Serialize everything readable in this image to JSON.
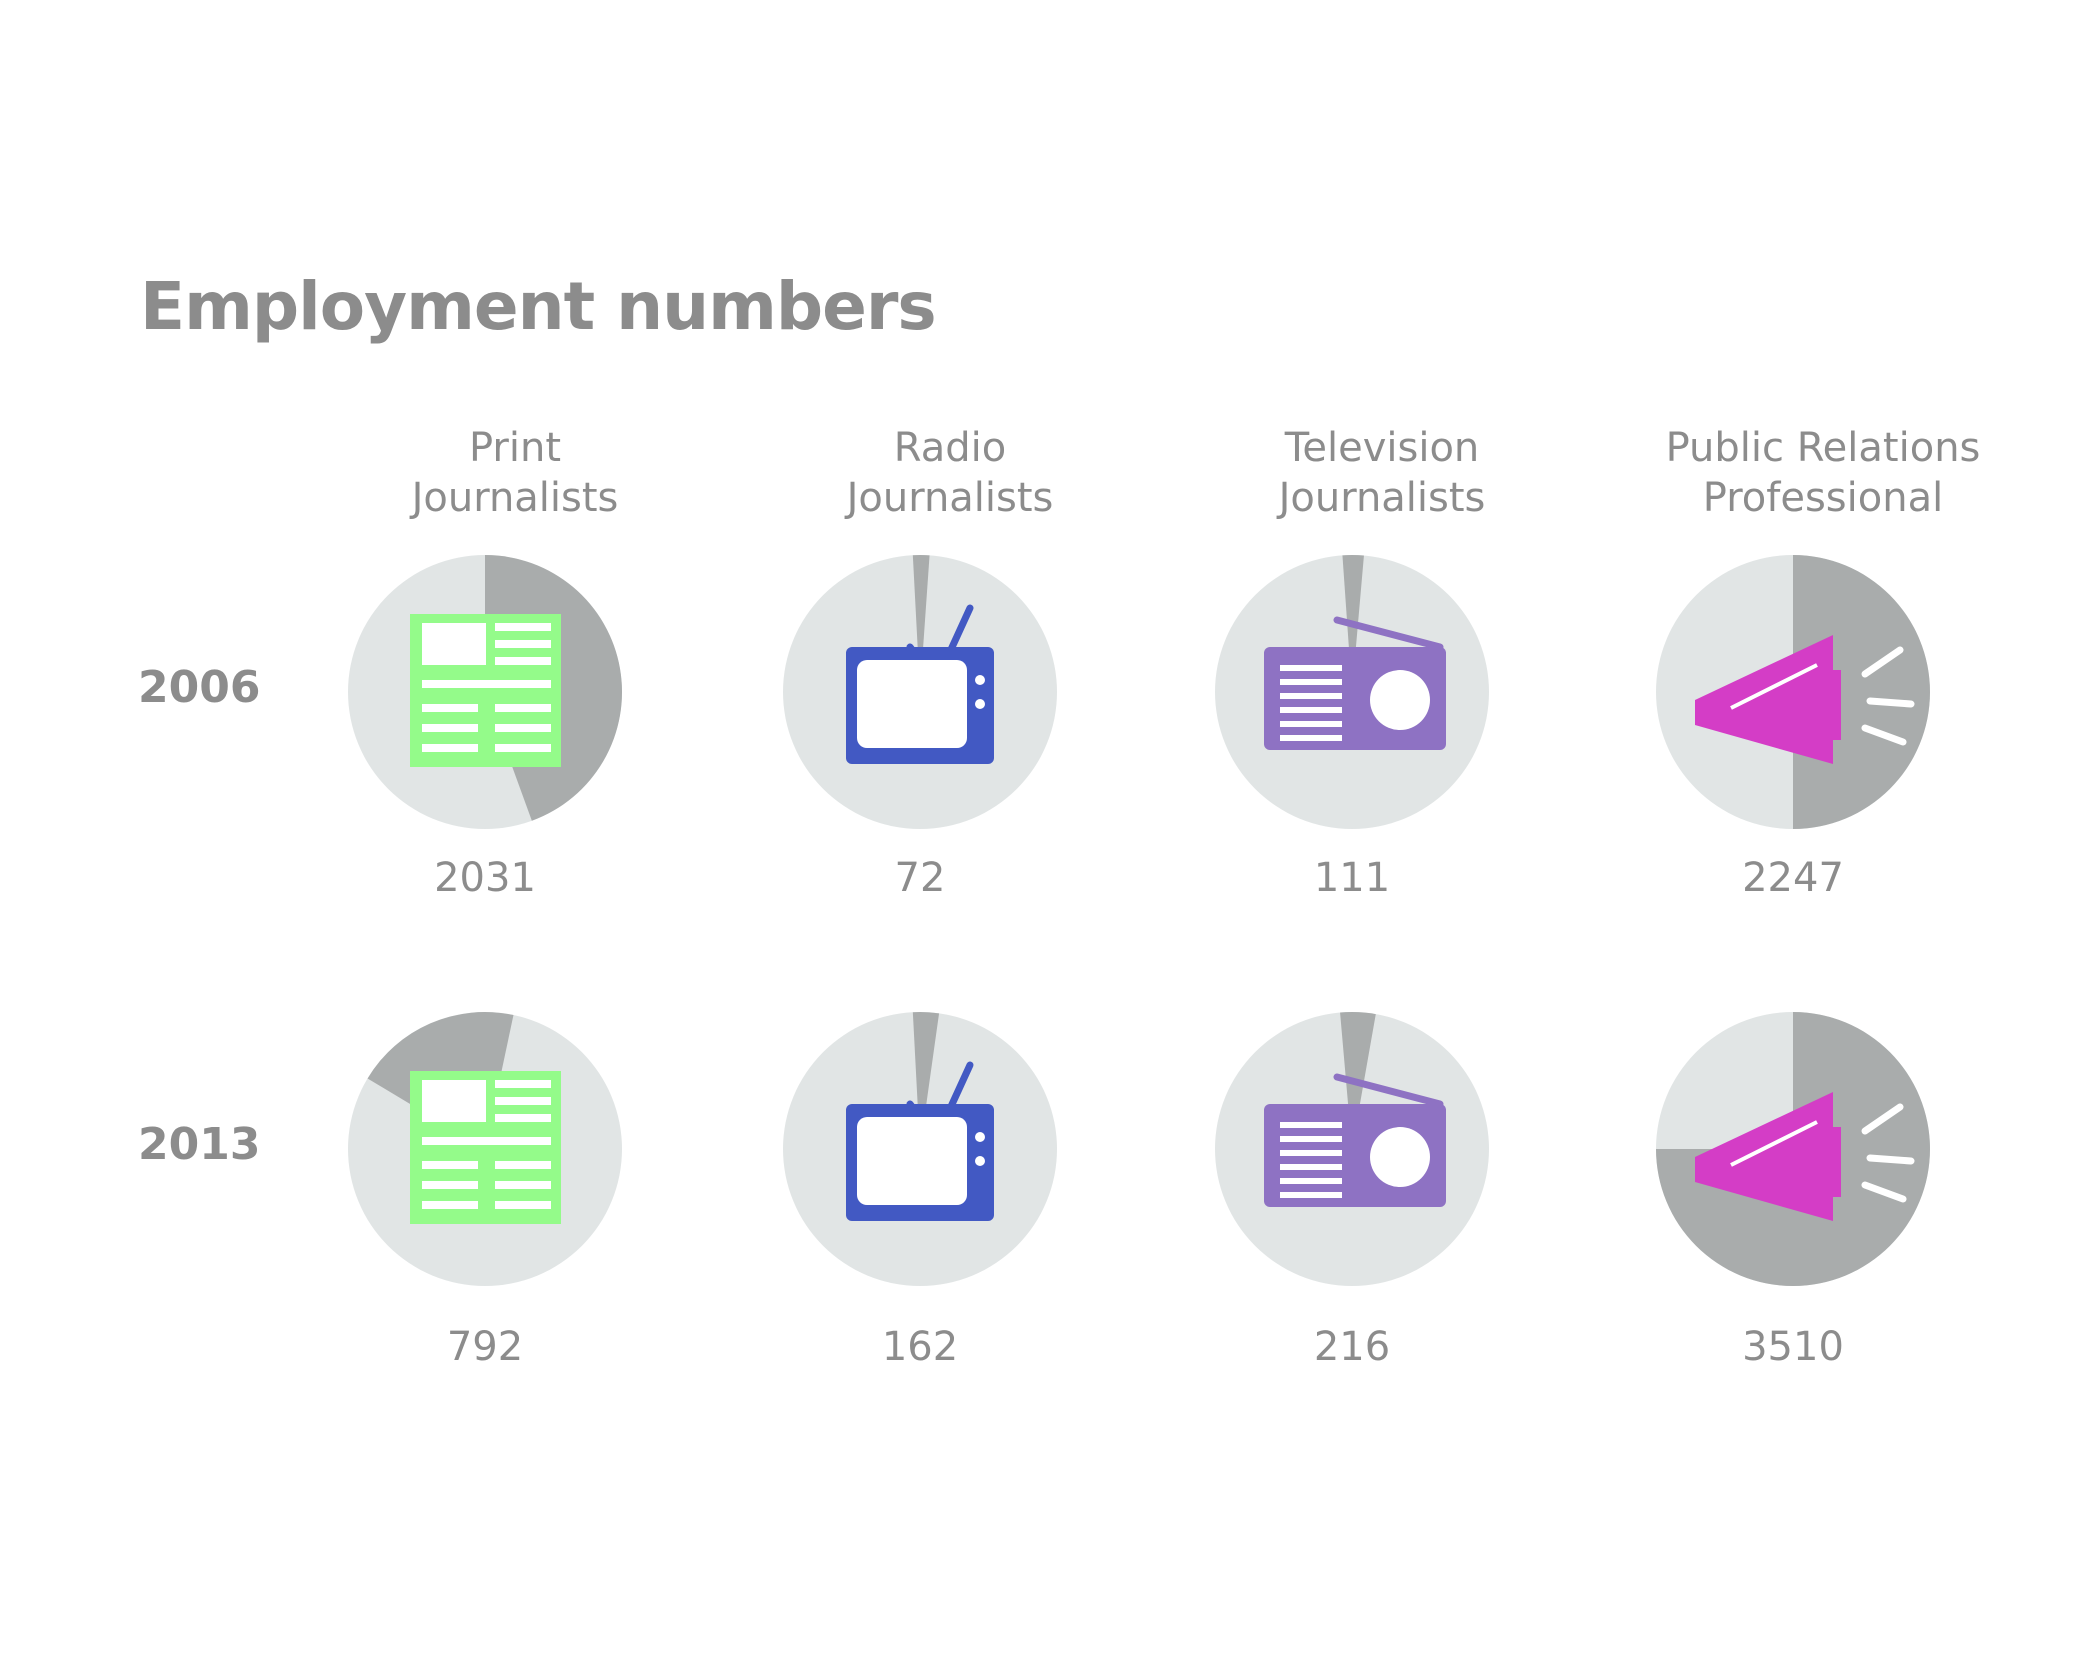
{
  "title": "Employment numbers",
  "colors": {
    "pie_background": "#e1e5e5",
    "pie_slice": "#a9acac",
    "print": "#94fb8a",
    "tv": "#4259c3",
    "radio": "#8e72c3",
    "pr": "#d43dc6",
    "text": "#8c8c8c"
  },
  "chart_data": {
    "type": "pie",
    "title": "Employment numbers",
    "rows": [
      "2006",
      "2013"
    ],
    "categories": [
      {
        "line1": "Print",
        "line2": "Journalists",
        "icon": "newspaper-icon"
      },
      {
        "line1": "Radio",
        "line2": "Journalists",
        "icon": "television-icon"
      },
      {
        "line1": "Television",
        "line2": "Journalists",
        "icon": "radio-icon"
      },
      {
        "line1": "Public Relations",
        "line2": "Professional",
        "icon": "megaphone-icon"
      }
    ],
    "values": {
      "2006": [
        "2031",
        "72",
        "111",
        "2247"
      ],
      "2013": [
        "792",
        "162",
        "216",
        "3510"
      ]
    },
    "slices": [
      [
        {
          "start_deg": 0,
          "end_deg": 160
        },
        {
          "start_deg": -3,
          "end_deg": 4
        },
        {
          "start_deg": -4,
          "end_deg": 5
        },
        {
          "start_deg": 0,
          "end_deg": 180
        }
      ],
      [
        {
          "start_deg": -59,
          "end_deg": 12
        },
        {
          "start_deg": -3,
          "end_deg": 8
        },
        {
          "start_deg": -5,
          "end_deg": 10
        },
        {
          "start_deg": 0,
          "end_deg": 270
        }
      ]
    ]
  }
}
